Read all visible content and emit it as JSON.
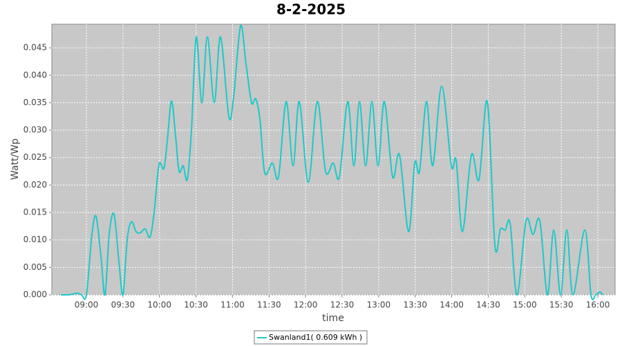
{
  "chart_data": {
    "type": "line",
    "title": "8-2-2025",
    "x_label": "time",
    "y_label": "Watt/Wp",
    "x": [
      8.65,
      8.763,
      8.877,
      8.934,
      9.0,
      9.076,
      9.132,
      9.199,
      9.255,
      9.312,
      9.378,
      9.445,
      9.501,
      9.558,
      9.615,
      9.681,
      9.738,
      9.804,
      9.87,
      9.927,
      9.993,
      10.06,
      10.107,
      10.164,
      10.22,
      10.268,
      10.325,
      10.381,
      10.438,
      10.504,
      10.58,
      10.656,
      10.75,
      10.835,
      10.949,
      11.015,
      11.11,
      11.185,
      11.261,
      11.318,
      11.375,
      11.441,
      11.545,
      11.63,
      11.734,
      11.829,
      11.914,
      12.037,
      12.16,
      12.273,
      12.378,
      12.463,
      12.576,
      12.661,
      12.737,
      12.822,
      12.907,
      12.992,
      13.078,
      13.191,
      13.286,
      13.409,
      13.494,
      13.56,
      13.655,
      13.74,
      13.863,
      13.995,
      14.061,
      14.147,
      14.27,
      14.374,
      14.487,
      14.591,
      14.667,
      14.733,
      14.8,
      14.894,
      15.017,
      15.112,
      15.206,
      15.31,
      15.396,
      15.49,
      15.575,
      15.66,
      15.821,
      15.906,
      15.972,
      16.029,
      16.067
    ],
    "series": [
      {
        "name": "Swanland1( 0.609 kWh )",
        "color": "#1ec8c8",
        "values": [
          0,
          0,
          0.0003,
          0,
          0,
          0.011,
          0.0143,
          0.007,
          0,
          0.011,
          0.0147,
          0.006,
          0,
          0.01,
          0.0133,
          0.0115,
          0.0113,
          0.012,
          0.0105,
          0.015,
          0.0237,
          0.023,
          0.028,
          0.0353,
          0.029,
          0.0225,
          0.0235,
          0.021,
          0.03,
          0.047,
          0.035,
          0.047,
          0.035,
          0.047,
          0.0325,
          0.036,
          0.049,
          0.042,
          0.035,
          0.0357,
          0.032,
          0.0222,
          0.024,
          0.0215,
          0.0352,
          0.0235,
          0.0352,
          0.0205,
          0.0352,
          0.0225,
          0.024,
          0.0215,
          0.0352,
          0.0235,
          0.0352,
          0.0235,
          0.0352,
          0.0235,
          0.0352,
          0.0215,
          0.0255,
          0.0115,
          0.024,
          0.0225,
          0.0352,
          0.0235,
          0.038,
          0.0235,
          0.0245,
          0.0115,
          0.0255,
          0.021,
          0.0352,
          0.009,
          0.012,
          0.0118,
          0.013,
          0,
          0.0135,
          0.011,
          0.0135,
          0,
          0.0118,
          0,
          0.0118,
          0,
          0.0118,
          0,
          0,
          0.0005,
          0
        ]
      }
    ],
    "xlim": [
      8.527,
      16.236
    ],
    "xticks": [
      {
        "value": 9,
        "label": "09:00"
      },
      {
        "value": 9.5,
        "label": "09:30"
      },
      {
        "value": 10,
        "label": "10:00"
      },
      {
        "value": 10.5,
        "label": "10:30"
      },
      {
        "value": 11,
        "label": "11:00"
      },
      {
        "value": 11.5,
        "label": "11:30"
      },
      {
        "value": 12,
        "label": "12:00"
      },
      {
        "value": 12.5,
        "label": "12:30"
      },
      {
        "value": 13,
        "label": "13:00"
      },
      {
        "value": 13.5,
        "label": "13:30"
      },
      {
        "value": 14,
        "label": "14:00"
      },
      {
        "value": 14.5,
        "label": "14:30"
      },
      {
        "value": 15,
        "label": "15:00"
      },
      {
        "value": 15.5,
        "label": "15:30"
      },
      {
        "value": 16,
        "label": "16:00"
      }
    ],
    "ylim": [
      0,
      0.0493
    ],
    "yticks": [
      {
        "value": 0,
        "label": "0.000"
      },
      0.005,
      {
        "value": 0.01,
        "label": "0.010"
      },
      0.015,
      {
        "value": 0.02,
        "label": "0.020"
      },
      0.025,
      {
        "value": 0.03,
        "label": "0.030"
      },
      0.035,
      {
        "value": 0.04,
        "label": "0.040"
      },
      0.045
    ],
    "grid": true,
    "legend": "bottom"
  }
}
